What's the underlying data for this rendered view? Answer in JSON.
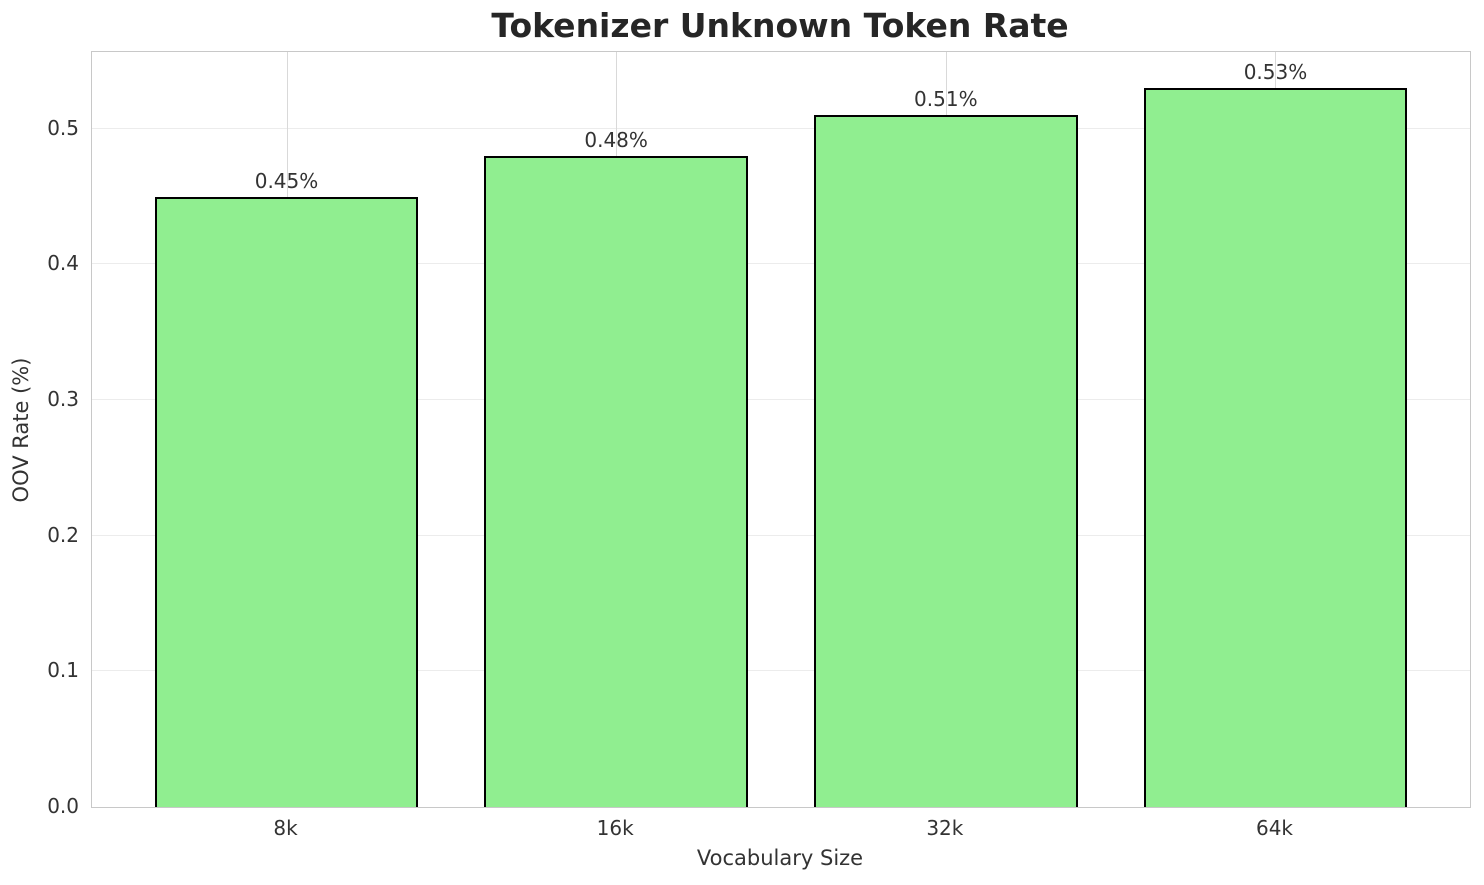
{
  "chart_data": {
    "type": "bar",
    "title": "Tokenizer Unknown Token Rate",
    "xlabel": "Vocabulary Size",
    "ylabel": "OOV Rate (%)",
    "categories": [
      "8k",
      "16k",
      "32k",
      "64k"
    ],
    "values": [
      0.45,
      0.48,
      0.51,
      0.53
    ],
    "bar_labels": [
      "0.45%",
      "0.48%",
      "0.51%",
      "0.53%"
    ],
    "yticks": [
      0,
      0.1,
      0.2,
      0.3,
      0.4,
      0.5
    ],
    "ytick_labels": [
      "0.0",
      "0.1",
      "0.2",
      "0.3",
      "0.4",
      "0.5"
    ],
    "ylim": [
      0,
      0.5565
    ],
    "bar_width_units": 0.8,
    "x_edge_pad_units": 0.59,
    "grid": true,
    "legend": "none",
    "bar_color": "#90EE90",
    "bar_edge_color": "#000000",
    "spine_color": "#c8c8c8",
    "hgrid_color": "#ececec",
    "vgrid_color": "#d9d9d9",
    "text_color": "#333333",
    "title_color": "#262626",
    "background_color": "#ffffff"
  }
}
